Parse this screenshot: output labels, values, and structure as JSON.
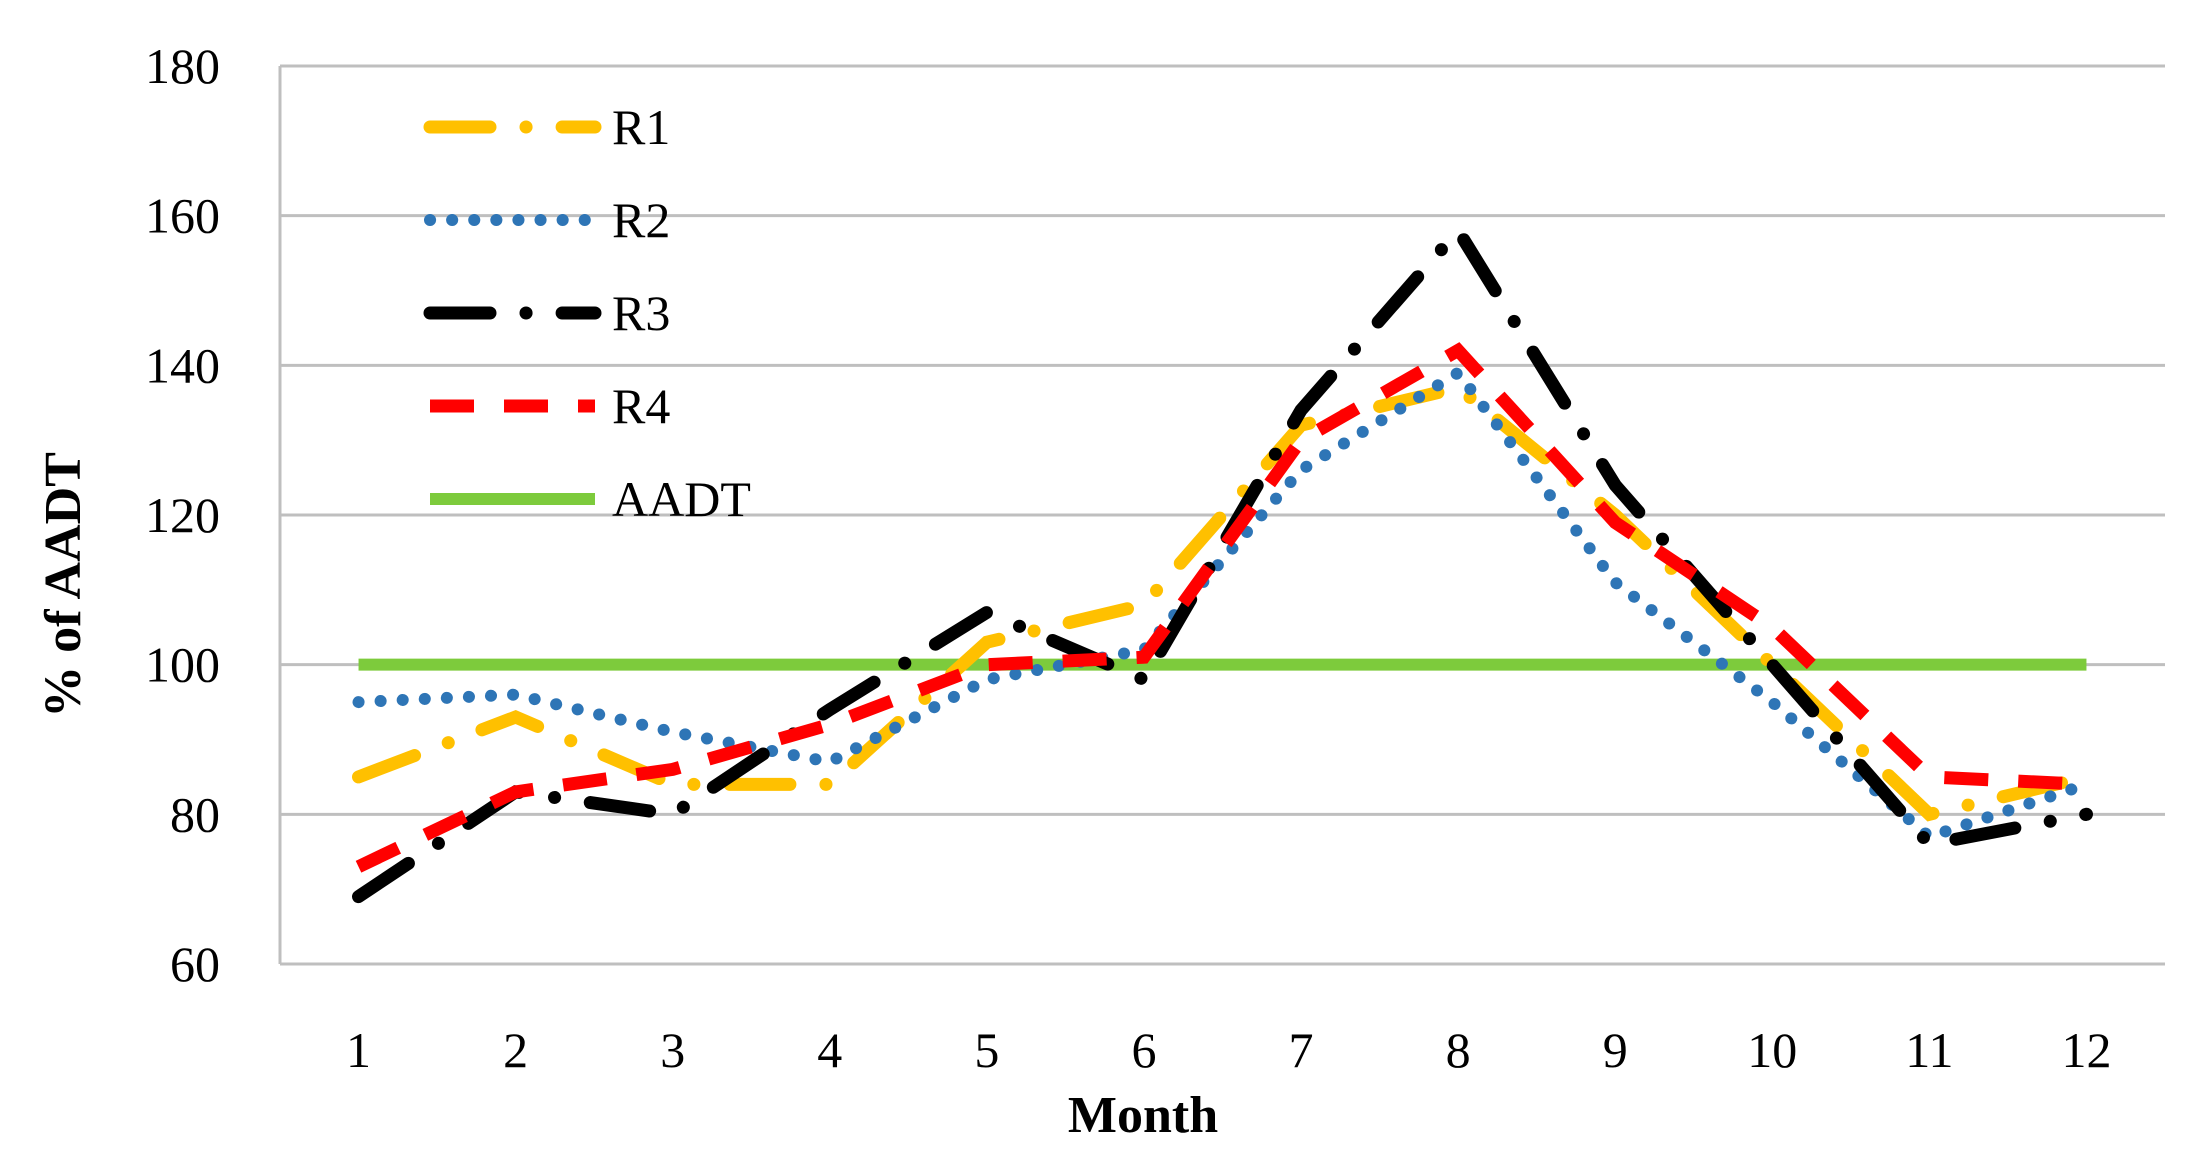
{
  "chart_data": {
    "type": "line",
    "title": "",
    "xlabel": "Month",
    "ylabel": "% of AADT",
    "ylim": [
      60,
      180
    ],
    "yticks": [
      60,
      80,
      100,
      120,
      140,
      160,
      180
    ],
    "categories": [
      "1",
      "2",
      "3",
      "4",
      "5",
      "6",
      "7",
      "8",
      "9",
      "10",
      "11",
      "12"
    ],
    "grid": "horizontal",
    "legend_position": "top-left",
    "series": [
      {
        "name": "R1",
        "color": "#FFC000",
        "dash": "long-dash-dot",
        "values": [
          85,
          93,
          84,
          84,
          103,
          108,
          132,
          137,
          120,
          100,
          80,
          85
        ]
      },
      {
        "name": "R2",
        "color": "#2E75B6",
        "dash": "dot",
        "values": [
          95,
          96,
          91,
          87,
          98,
          102,
          126,
          139,
          111,
          95,
          77,
          84
        ]
      },
      {
        "name": "R3",
        "color": "#000000",
        "dash": "long-dash-dot",
        "values": [
          69,
          83,
          80,
          94,
          107,
          98,
          134,
          158,
          124,
          100,
          76,
          80
        ]
      },
      {
        "name": "R4",
        "color": "#FF0000",
        "dash": "dash",
        "values": [
          73,
          83,
          86,
          92,
          100,
          101,
          130,
          142,
          119,
          105,
          85,
          84
        ]
      },
      {
        "name": "AADT",
        "color": "#7DCB3C",
        "dash": "solid",
        "values": [
          100,
          100,
          100,
          100,
          100,
          100,
          100,
          100,
          100,
          100,
          100,
          100
        ]
      }
    ]
  }
}
